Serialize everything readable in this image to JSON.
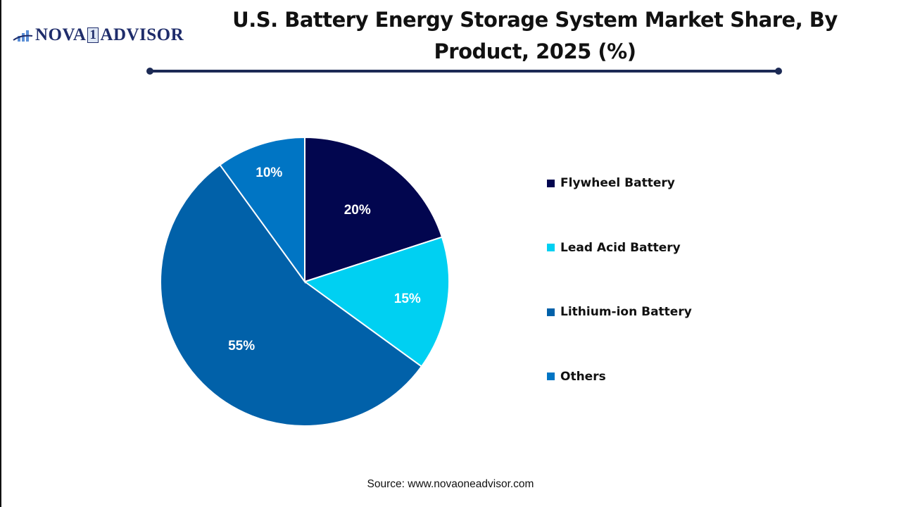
{
  "logo": {
    "text_left": "NOVA",
    "text_one": "1",
    "text_right": "ADVISOR"
  },
  "title": "U.S. Battery Energy Storage System Market Share, By Product, 2025 (%)",
  "source": "Source: www.novaoneadvisor.com",
  "colors": {
    "flywheel": "#02064f",
    "lead_acid": "#00d0f2",
    "lithium_ion": "#0161a9",
    "others": "#0075c4",
    "rule": "#1c2a55"
  },
  "chart_data": {
    "type": "pie",
    "title": "U.S. Battery Energy Storage System Market Share, By Product, 2025 (%)",
    "categories": [
      "Flywheel Battery",
      "Lead Acid Battery",
      "Lithium-ion Battery",
      "Others"
    ],
    "values": [
      20,
      15,
      55,
      10
    ],
    "labels": [
      "20%",
      "15%",
      "55%",
      "10%"
    ],
    "start_angle": "12 o'clock, clockwise",
    "legend_position": "right"
  },
  "legend": [
    {
      "label": "Flywheel Battery",
      "color": "#02064f"
    },
    {
      "label": "Lead Acid Battery",
      "color": "#00d0f2"
    },
    {
      "label": "Lithium-ion Battery",
      "color": "#0161a9"
    },
    {
      "label": "Others",
      "color": "#0075c4"
    }
  ]
}
